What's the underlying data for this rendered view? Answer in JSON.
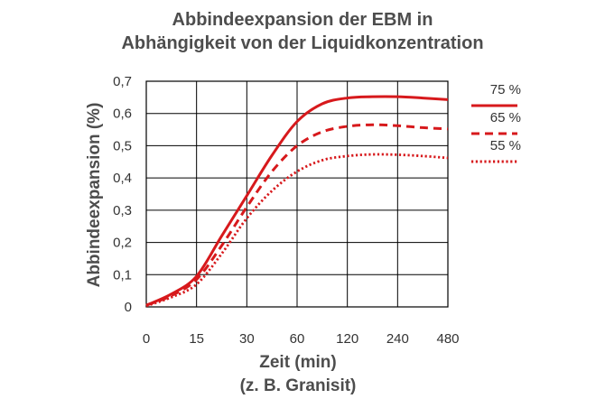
{
  "chart_data": {
    "type": "line",
    "title_lines": [
      "Abbindeexpansion der EBM in",
      "Abhängigkeit von der Liquidkonzentration"
    ],
    "xlabel": "Zeit (min)",
    "xlabel_sub": "(z. B. Granisit)",
    "ylabel": "Abbindeexpansion (%)",
    "x_categories": [
      "0",
      "15",
      "30",
      "60",
      "120",
      "240",
      "480"
    ],
    "y_ticks": [
      "0",
      "0,1",
      "0,2",
      "0,3",
      "0,4",
      "0,5",
      "0,6",
      "0,7"
    ],
    "ylim": [
      0,
      0.7
    ],
    "grid": true,
    "legend_position": "right",
    "series": [
      {
        "name": "75 %",
        "style": "solid",
        "color": "#d7191c",
        "points": [
          [
            0,
            0.005
          ],
          [
            0.5,
            0.04
          ],
          [
            1,
            0.095
          ],
          [
            1.5,
            0.22
          ],
          [
            2,
            0.345
          ],
          [
            2.5,
            0.47
          ],
          [
            3,
            0.575
          ],
          [
            3.5,
            0.63
          ],
          [
            4,
            0.648
          ],
          [
            4.5,
            0.652
          ],
          [
            5,
            0.652
          ],
          [
            5.5,
            0.648
          ],
          [
            6,
            0.643
          ]
        ]
      },
      {
        "name": "65 %",
        "style": "dashed",
        "color": "#d7191c",
        "points": [
          [
            0,
            0.005
          ],
          [
            0.5,
            0.035
          ],
          [
            1,
            0.085
          ],
          [
            1.5,
            0.19
          ],
          [
            2,
            0.31
          ],
          [
            2.5,
            0.42
          ],
          [
            3,
            0.5
          ],
          [
            3.5,
            0.543
          ],
          [
            4,
            0.56
          ],
          [
            4.5,
            0.565
          ],
          [
            5,
            0.562
          ],
          [
            5.5,
            0.556
          ],
          [
            6,
            0.552
          ]
        ]
      },
      {
        "name": "55 %",
        "style": "dotted",
        "color": "#d7191c",
        "points": [
          [
            0,
            0.003
          ],
          [
            0.5,
            0.03
          ],
          [
            1,
            0.07
          ],
          [
            1.5,
            0.165
          ],
          [
            2,
            0.275
          ],
          [
            2.5,
            0.36
          ],
          [
            3,
            0.42
          ],
          [
            3.5,
            0.455
          ],
          [
            4,
            0.468
          ],
          [
            4.5,
            0.473
          ],
          [
            5,
            0.472
          ],
          [
            5.5,
            0.468
          ],
          [
            6,
            0.462
          ]
        ]
      }
    ]
  }
}
